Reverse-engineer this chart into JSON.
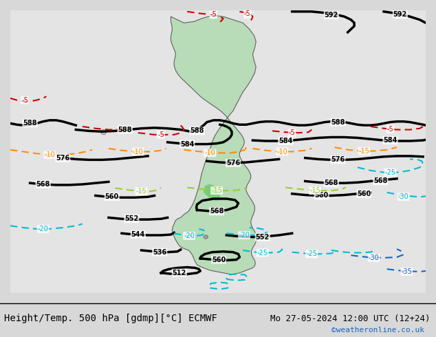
{
  "title_left": "Height/Temp. 500 hPa [gdmp][°C] ECMWF",
  "title_right": "Mo 27-05-2024 12:00 UTC (12+24)",
  "credit": "©weatheronline.co.uk",
  "background_color": "#d8d8d8",
  "land_color": "#b8dbb8",
  "ocean_color": "#e4e4e4",
  "highlight_land_color": "#7acc7a",
  "border_color": "#606060",
  "font_size_title": 10,
  "font_size_label": 8,
  "font_size_credit": 8,
  "color_black": "#000000",
  "color_red": "#cc0000",
  "color_orange": "#ff8c00",
  "color_ylgn": "#9acd32",
  "color_cyan": "#00bcd4",
  "color_blue": "#1565c0"
}
